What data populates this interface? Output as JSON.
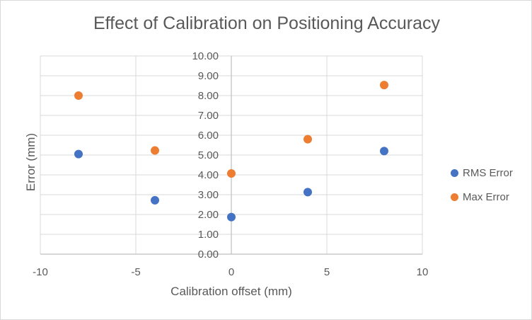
{
  "chart_data": {
    "type": "scatter",
    "title": "Effect of Calibration on Positioning Accuracy",
    "xlabel": "Calibration offset (mm)",
    "ylabel": "Error (mm)",
    "xlim": [
      -10,
      10
    ],
    "ylim": [
      0,
      10
    ],
    "x_ticks": [
      "-10",
      "-5",
      "0",
      "5",
      "10"
    ],
    "y_ticks": [
      "0.00",
      "1.00",
      "2.00",
      "3.00",
      "4.00",
      "5.00",
      "6.00",
      "7.00",
      "8.00",
      "9.00",
      "10.00"
    ],
    "grid": true,
    "legend_position": "right",
    "series": [
      {
        "name": "RMS Error",
        "color": "#4472c4",
        "x": [
          -8,
          -4,
          0,
          4,
          8
        ],
        "y": [
          5.05,
          2.72,
          1.87,
          3.13,
          5.2
        ]
      },
      {
        "name": "Max Error",
        "color": "#ed7d31",
        "x": [
          -8,
          -4,
          0,
          4,
          8
        ],
        "y": [
          8.0,
          5.23,
          4.07,
          5.8,
          8.53
        ]
      }
    ]
  }
}
